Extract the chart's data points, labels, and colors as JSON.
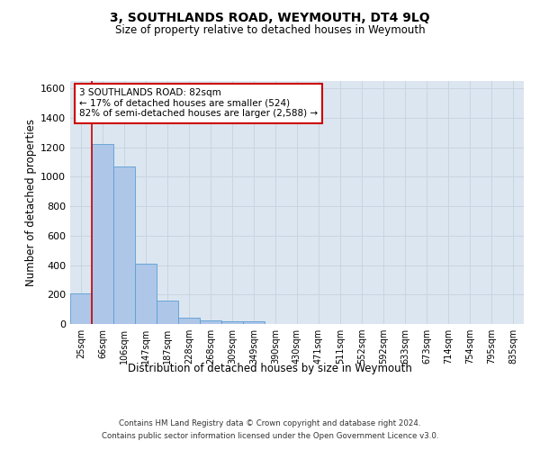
{
  "title": "3, SOUTHLANDS ROAD, WEYMOUTH, DT4 9LQ",
  "subtitle": "Size of property relative to detached houses in Weymouth",
  "xlabel": "Distribution of detached houses by size in Weymouth",
  "ylabel": "Number of detached properties",
  "bar_labels": [
    "25sqm",
    "66sqm",
    "106sqm",
    "147sqm",
    "187sqm",
    "228sqm",
    "268sqm",
    "309sqm",
    "349sqm",
    "390sqm",
    "430sqm",
    "471sqm",
    "511sqm",
    "552sqm",
    "592sqm",
    "633sqm",
    "673sqm",
    "714sqm",
    "754sqm",
    "795sqm",
    "835sqm"
  ],
  "bar_values": [
    205,
    1225,
    1070,
    410,
    160,
    45,
    27,
    20,
    17,
    0,
    0,
    0,
    0,
    0,
    0,
    0,
    0,
    0,
    0,
    0,
    0
  ],
  "bar_color": "#aec6e8",
  "bar_edge_color": "#5a9fd4",
  "ylim": [
    0,
    1650
  ],
  "yticks": [
    0,
    200,
    400,
    600,
    800,
    1000,
    1200,
    1400,
    1600
  ],
  "annotation_text": "3 SOUTHLANDS ROAD: 82sqm\n← 17% of detached houses are smaller (524)\n82% of semi-detached houses are larger (2,588) →",
  "annotation_box_color": "#ffffff",
  "annotation_box_edge_color": "#cc0000",
  "vline_x": 0.5,
  "vline_color": "#cc0000",
  "grid_color": "#c8d4e0",
  "plot_bg_color": "#dce6f0",
  "footer_line1": "Contains HM Land Registry data © Crown copyright and database right 2024.",
  "footer_line2": "Contains public sector information licensed under the Open Government Licence v3.0."
}
